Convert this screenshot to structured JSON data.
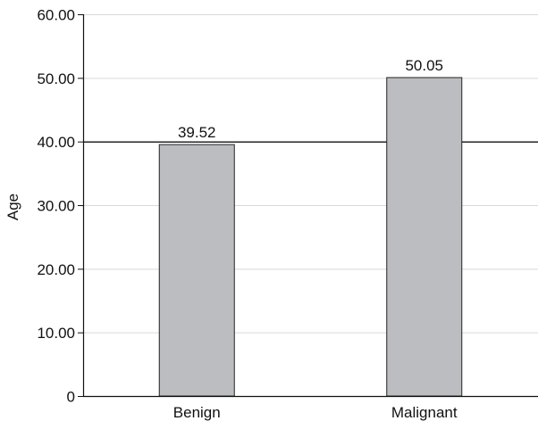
{
  "chart_data": {
    "type": "bar",
    "title": "",
    "xlabel": "",
    "ylabel": "Age",
    "categories": [
      "Benign",
      "Malignant"
    ],
    "values": [
      39.52,
      50.05
    ],
    "data_labels": [
      "39.52",
      "50.05"
    ],
    "ylim": [
      0,
      60
    ],
    "yticks": [
      0,
      10,
      20,
      30,
      40,
      50,
      60
    ],
    "ytick_labels": [
      "0",
      "10.00",
      "20.00",
      "30.00",
      "40.00",
      "50.00",
      "60.00"
    ],
    "grid": true,
    "bar_color": "#bcbdc0",
    "bar_edge_color": "#222222",
    "reference_line": {
      "y": 40,
      "color": "#111111"
    }
  }
}
